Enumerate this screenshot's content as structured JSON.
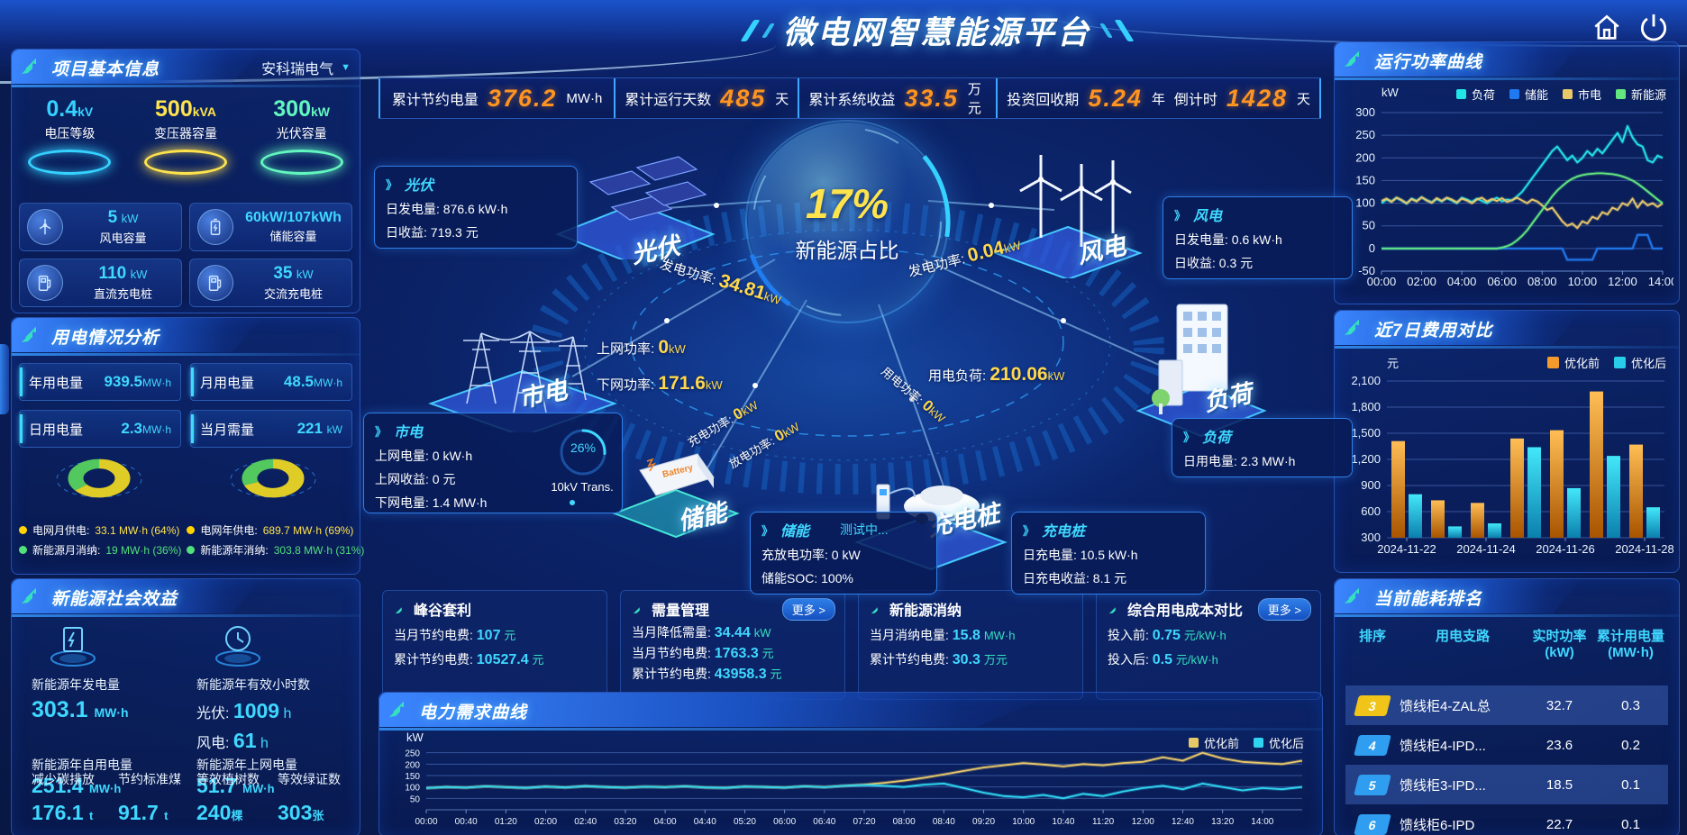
{
  "title": "微电网智慧能源平台",
  "topbar": {
    "kpis": [
      {
        "label": "累计节约电量",
        "value": "376.2",
        "unit": "MW·h"
      },
      {
        "label": "累计运行天数",
        "value": "485",
        "unit": "天"
      },
      {
        "label": "累计系统收益",
        "value": "33.5",
        "unit": "万元"
      },
      {
        "label": "投资回收期",
        "value": "5.24",
        "unit": "年"
      },
      {
        "label": "倒计时",
        "value": "1428",
        "unit": "天"
      }
    ]
  },
  "left": {
    "project": {
      "title": "项目基本信息",
      "company": "安科瑞电气",
      "dropdown_arrow": "▼",
      "pedestals": [
        {
          "value": "0.4",
          "unit": "kV",
          "label": "电压等级",
          "color": "#35d2ff"
        },
        {
          "value": "500",
          "unit": "kVA",
          "label": "变压器容量",
          "color": "#ffe34d"
        },
        {
          "value": "300",
          "unit": "kW",
          "label": "光伏容量",
          "color": "#63f7c0"
        }
      ],
      "cards": [
        {
          "value": "5",
          "unit": "kW",
          "label": "风电容量"
        },
        {
          "value": "60kW/107kWh",
          "unit": "",
          "label": "储能容量"
        },
        {
          "value": "110",
          "unit": "kW",
          "label": "直流充电桩"
        },
        {
          "value": "35",
          "unit": "kW",
          "label": "交流充电桩"
        }
      ]
    },
    "usage": {
      "title": "用电情况分析",
      "stats": [
        {
          "label": "年用电量",
          "value": "939.5",
          "unit": "MW·h"
        },
        {
          "label": "月用电量",
          "value": "48.5",
          "unit": "MW·h"
        },
        {
          "label": "日用电量",
          "value": "2.3",
          "unit": "MW·h"
        },
        {
          "label": "当月需量",
          "value": "221",
          "unit": "kW"
        }
      ],
      "donuts": [
        {
          "slices": [
            64,
            36
          ],
          "legend": [
            {
              "label": "电网月供电:",
              "value": "33.1 MW·h (64%)",
              "color": "#ffd400"
            },
            {
              "label": "新能源月消纳:",
              "value": "19 MW·h (36%)",
              "color": "#52e07a"
            }
          ]
        },
        {
          "slices": [
            69,
            31
          ],
          "legend": [
            {
              "label": "电网年供电:",
              "value": "689.7 MW·h (69%)",
              "color": "#ffd400"
            },
            {
              "label": "新能源年消纳:",
              "value": "303.8 MW·h (31%)",
              "color": "#52e07a"
            }
          ]
        }
      ]
    },
    "benefits": {
      "title": "新能源社会效益",
      "gen": {
        "label": "新能源年发电量",
        "value": "303.1",
        "unit": "MW·h"
      },
      "hours": {
        "label": "新能源年有效小时数",
        "pv_label": "光伏:",
        "pv_value": "1009",
        "pv_unit": "h",
        "wind_label": "风电:",
        "wind_value": "61",
        "wind_unit": "h"
      },
      "self_use": {
        "label": "新能源年自用电量",
        "value": "251.4",
        "unit": "MW·h"
      },
      "to_grid": {
        "label": "新能源年上网电量",
        "value": "51.7",
        "unit": "MW·h"
      },
      "co2": {
        "label": "减少碳排放",
        "value": "176.1",
        "unit": "t"
      },
      "coal": {
        "label": "节约标准煤",
        "value": "91.7",
        "unit": "t"
      },
      "trees": {
        "label": "等效植树数",
        "value": "240",
        "unit": "棵"
      },
      "certs": {
        "label": "等效绿证数",
        "value": "303",
        "unit": "张"
      }
    }
  },
  "center": {
    "sphere": {
      "value": "17%",
      "label": "新能源占比"
    },
    "nodes": {
      "pv": "光伏",
      "wind": "风电",
      "grid": "市电",
      "load": "负荷",
      "storage": "储能",
      "charger": "充电桩"
    },
    "boxes": {
      "pv": {
        "title": "光伏",
        "l0": "日发电量:",
        "v0": "876.6 kW·h",
        "l1": "日收益:",
        "v1": "719.3 元"
      },
      "wind": {
        "title": "风电",
        "l0": "日发电量:",
        "v0": "0.6 kW·h",
        "l1": "日收益:",
        "v1": "0.3 元"
      },
      "grid": {
        "title": "市电",
        "l0": "上网电量:",
        "v0": "0 kW·h",
        "l1": "上网收益:",
        "v1": "0 元",
        "l2": "下网电量:",
        "v2": "1.4 MW·h",
        "ring_value": "26%",
        "ring_label": "10kV Trans."
      },
      "load": {
        "title": "负荷",
        "l0": "日用电量:",
        "v0": "2.3 MW·h"
      },
      "storage": {
        "title": "储能",
        "status": "测试中...",
        "l0": "充放电功率:",
        "v0": "0 kW",
        "l1": "储能SOC:",
        "v1": "100%"
      },
      "charger": {
        "title": "充电桩",
        "l0": "日充电量:",
        "v0": "10.5 kW·h",
        "l1": "日充电收益:",
        "v1": "8.1 元"
      }
    },
    "flows": {
      "pv_gen": {
        "label": "发电功率:",
        "value": "34.81",
        "unit": "kW"
      },
      "up_grid": {
        "label": "上网功率:",
        "value": "0",
        "unit": "kW"
      },
      "down_grid": {
        "label": "下网功率:",
        "value": "171.6",
        "unit": "kW"
      },
      "wind_gen": {
        "label": "发电功率:",
        "value": "0.04",
        "unit": "kW"
      },
      "load_power": {
        "label": "用电负荷:",
        "value": "210.06",
        "unit": "kW"
      },
      "charge": {
        "label": "充电功率:",
        "value": "0",
        "unit": "kW"
      },
      "discharge": {
        "label": "放电功率:",
        "value": "0",
        "unit": "kW"
      },
      "use_power": {
        "label": "用电功率:",
        "value": "0",
        "unit": "kW"
      }
    },
    "cards": [
      {
        "title": "峰谷套利",
        "more": "",
        "l0": "当月节约电费:",
        "v0": "107",
        "u0": "元",
        "l1": "累计节约电费:",
        "v1": "10527.4",
        "u1": "元",
        "l2": "",
        "v2": "",
        "u2": ""
      },
      {
        "title": "需量管理",
        "more": "更多 >",
        "l0": "当月降低需量:",
        "v0": "34.44",
        "u0": "kW",
        "l1": "当月节约电费:",
        "v1": "1763.3",
        "u1": "元",
        "l2": "累计节约电费:",
        "v2": "43958.3",
        "u2": "元"
      },
      {
        "title": "新能源消纳",
        "more": "",
        "l0": "当月消纳电量:",
        "v0": "15.8",
        "u0": "MW·h",
        "l1": "累计节约电费:",
        "v1": "30.3",
        "u1": "万元",
        "l2": "",
        "v2": "",
        "u2": ""
      },
      {
        "title": "综合用电成本对比",
        "more": "更多 >",
        "l0": "投入前:",
        "v0": "0.75",
        "u0": "元/kW·h",
        "l1": "投入后:",
        "v1": "0.5",
        "u1": "元/kW·h",
        "l2": "",
        "v2": "",
        "u2": ""
      }
    ]
  },
  "right": {
    "power_title": "运行功率曲线",
    "cost_title": "近7日费用对比",
    "ranking": {
      "title": "当前能耗排名",
      "col_rank": "排序",
      "col_branch": "用电支路",
      "col_power_a": "实时功率",
      "col_power_b": "(kW)",
      "col_energy_a": "累计用电量",
      "col_energy_b": "(MW·h)",
      "rows": [
        {
          "rank": "3",
          "branch": "馈线柜4-ZAL总",
          "power": "32.7",
          "energy": "0.3",
          "badge": "#f0c419"
        },
        {
          "rank": "4",
          "branch": "馈线柜4-IPD...",
          "power": "23.6",
          "energy": "0.2",
          "badge": "#2f9df0"
        },
        {
          "rank": "5",
          "branch": "馈线柜3-IPD...",
          "power": "18.5",
          "energy": "0.1",
          "badge": "#2f9df0"
        },
        {
          "rank": "6",
          "branch": "馈线柜6-IPD",
          "power": "22.7",
          "energy": "0.1",
          "badge": "#2f9df0"
        }
      ]
    }
  },
  "bottom": {
    "demand_title": "电力需求曲线"
  },
  "chart_data": [
    {
      "id": "power",
      "type": "line",
      "title": "运行功率曲线",
      "ylabel": "kW",
      "ylim": [
        -50,
        300
      ],
      "yticks": [
        -50,
        0,
        50,
        100,
        150,
        200,
        250,
        300
      ],
      "x_labels": [
        "00:00",
        "02:00",
        "04:00",
        "06:00",
        "08:00",
        "10:00",
        "12:00",
        "14:00"
      ],
      "legend_pos": "top",
      "grid": true,
      "series": [
        {
          "name": "负荷",
          "color": "#22e5e8",
          "values": [
            100,
            108,
            104,
            112,
            106,
            99,
            110,
            105,
            113,
            107,
            102,
            109,
            104,
            111,
            106,
            100,
            112,
            108,
            103,
            110,
            105,
            100,
            107,
            112,
            104,
            108,
            106,
            115,
            125,
            140,
            155,
            170,
            185,
            200,
            215,
            225,
            210,
            195,
            205,
            190,
            200,
            215,
            205,
            220,
            210,
            225,
            240,
            255,
            235,
            270,
            245,
            230,
            225,
            195,
            190,
            205,
            200
          ]
        },
        {
          "name": "储能",
          "color": "#2079f0",
          "values": [
            0,
            0,
            0,
            0,
            0,
            0,
            0,
            0,
            0,
            0,
            0,
            0,
            0,
            0,
            0,
            0,
            0,
            0,
            0,
            0,
            0,
            0,
            0,
            0,
            0,
            0,
            0,
            0,
            0,
            0,
            0,
            0,
            0,
            0,
            0,
            0,
            0,
            -25,
            -25,
            -25,
            -25,
            -25,
            -25,
            0,
            0,
            0,
            0,
            0,
            0,
            0,
            0,
            30,
            30,
            30,
            0,
            0,
            0
          ]
        },
        {
          "name": "市电",
          "color": "#e9c868",
          "values": [
            105,
            110,
            103,
            112,
            107,
            100,
            109,
            104,
            113,
            106,
            101,
            111,
            105,
            112,
            108,
            102,
            110,
            106,
            100,
            108,
            112,
            104,
            109,
            105,
            111,
            103,
            107,
            112,
            106,
            100,
            108,
            104,
            95,
            85,
            90,
            75,
            60,
            50,
            55,
            45,
            60,
            55,
            70,
            65,
            80,
            75,
            90,
            85,
            100,
            95,
            110,
            90,
            105,
            95,
            100,
            92,
            100
          ]
        },
        {
          "name": "新能源",
          "color": "#62e87f",
          "values": [
            0,
            0,
            0,
            0,
            0,
            0,
            0,
            0,
            0,
            0,
            0,
            0,
            0,
            0,
            0,
            0,
            0,
            0,
            0,
            0,
            0,
            0,
            0,
            0,
            2,
            5,
            10,
            18,
            28,
            40,
            55,
            70,
            85,
            100,
            115,
            128,
            138,
            147,
            154,
            159,
            162,
            164,
            165,
            166,
            166,
            165,
            164,
            162,
            159,
            155,
            150,
            143,
            135,
            126,
            117,
            108,
            100
          ]
        }
      ]
    },
    {
      "id": "cost",
      "type": "bar",
      "title": "近7日费用对比",
      "ylabel": "元",
      "ylim": [
        300,
        2100
      ],
      "yticks": [
        300,
        600,
        900,
        1200,
        1500,
        1800,
        2100
      ],
      "ytick_labels": [
        "300",
        "600",
        "900",
        "1,200",
        "1,500",
        "1,800",
        "2,100"
      ],
      "categories": [
        "2024-11-22",
        "2024-11-23",
        "2024-11-24",
        "2024-11-25",
        "2024-11-26",
        "2024-11-27",
        "2024-11-28"
      ],
      "x_tick_labels": [
        "2024-11-22",
        "2024-11-24",
        "2024-11-26",
        "2024-11-28"
      ],
      "legend_pos": "top-right",
      "grid": true,
      "series": [
        {
          "name": "优化前",
          "color": "#f59a2d",
          "grad": [
            "#ffbe55",
            "#a85400"
          ],
          "values": [
            1410,
            730,
            700,
            1440,
            1535,
            1980,
            1370
          ]
        },
        {
          "name": "优化后",
          "color": "#27cdea",
          "grad": [
            "#43e8fa",
            "#0b7fae"
          ],
          "values": [
            800,
            430,
            465,
            1340,
            870,
            1240,
            650
          ]
        }
      ]
    },
    {
      "id": "demand",
      "type": "line",
      "title": "电力需求曲线",
      "ylabel": "kW",
      "ylim": [
        0,
        300
      ],
      "yticks": [
        50,
        100,
        150,
        200,
        250
      ],
      "x_labels": [
        "00:00",
        "00:40",
        "01:20",
        "02:00",
        "02:40",
        "03:20",
        "04:00",
        "04:40",
        "05:20",
        "06:00",
        "06:40",
        "07:20",
        "08:00",
        "08:40",
        "09:20",
        "10:00",
        "10:40",
        "11:20",
        "12:00",
        "12:40",
        "13:20",
        "14:00"
      ],
      "legend_pos": "top-right",
      "grid": true,
      "series": [
        {
          "name": "优化前",
          "color": "#e9c868",
          "values": [
            95,
            100,
            97,
            103,
            99,
            96,
            102,
            98,
            104,
            100,
            97,
            101,
            99,
            103,
            98,
            96,
            102,
            100,
            97,
            103,
            99,
            105,
            110,
            118,
            128,
            140,
            155,
            170,
            185,
            195,
            205,
            198,
            190,
            200,
            195,
            205,
            210,
            230,
            215,
            250,
            225,
            210,
            205,
            200,
            215
          ]
        },
        {
          "name": "优化后",
          "color": "#2fd5f0",
          "values": [
            95,
            100,
            97,
            103,
            99,
            96,
            102,
            98,
            104,
            100,
            97,
            101,
            99,
            103,
            98,
            96,
            102,
            100,
            97,
            103,
            99,
            105,
            108,
            105,
            100,
            110,
            115,
            95,
            75,
            60,
            55,
            65,
            50,
            70,
            60,
            80,
            95,
            105,
            90,
            115,
            100,
            85,
            95,
            90,
            100
          ]
        }
      ]
    }
  ]
}
